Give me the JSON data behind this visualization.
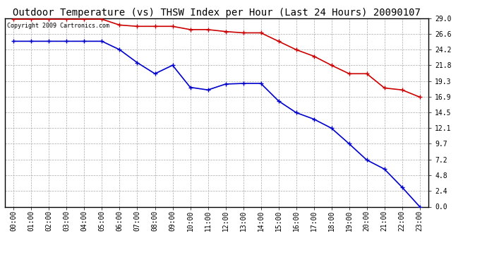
{
  "title": "Outdoor Temperature (vs) THSW Index per Hour (Last 24 Hours) 20090107",
  "copyright_text": "Copyright 2009 Cartronics.com",
  "hours": [
    "00:00",
    "01:00",
    "02:00",
    "03:00",
    "04:00",
    "05:00",
    "06:00",
    "07:00",
    "08:00",
    "09:00",
    "10:00",
    "11:00",
    "12:00",
    "13:00",
    "14:00",
    "15:00",
    "16:00",
    "17:00",
    "18:00",
    "19:00",
    "20:00",
    "21:00",
    "22:00",
    "23:00"
  ],
  "temp_values": [
    28.9,
    28.9,
    28.9,
    28.9,
    28.9,
    28.9,
    28.0,
    27.8,
    27.8,
    27.8,
    27.3,
    27.3,
    27.0,
    26.8,
    26.8,
    25.5,
    24.2,
    23.2,
    21.8,
    20.5,
    20.5,
    18.3,
    18.0,
    16.9
  ],
  "thsw_values": [
    25.5,
    25.5,
    25.5,
    25.5,
    25.5,
    25.5,
    24.2,
    22.2,
    20.5,
    21.8,
    18.4,
    18.0,
    18.9,
    19.0,
    19.0,
    16.3,
    14.5,
    13.5,
    12.1,
    9.7,
    7.2,
    5.8,
    3.0,
    0.0
  ],
  "temp_color": "#cc0000",
  "thsw_color": "#0000cc",
  "bg_color": "#ffffff",
  "plot_bg_color": "#ffffff",
  "grid_color": "#aaaaaa",
  "yticks": [
    0.0,
    2.4,
    4.8,
    7.2,
    9.7,
    12.1,
    14.5,
    16.9,
    19.3,
    21.8,
    24.2,
    26.6,
    29.0
  ],
  "ymin": 0.0,
  "ymax": 29.0,
  "marker": "+",
  "marker_size": 4,
  "line_width": 1.2,
  "title_fontsize": 10,
  "tick_fontsize": 7,
  "copyright_fontsize": 6
}
